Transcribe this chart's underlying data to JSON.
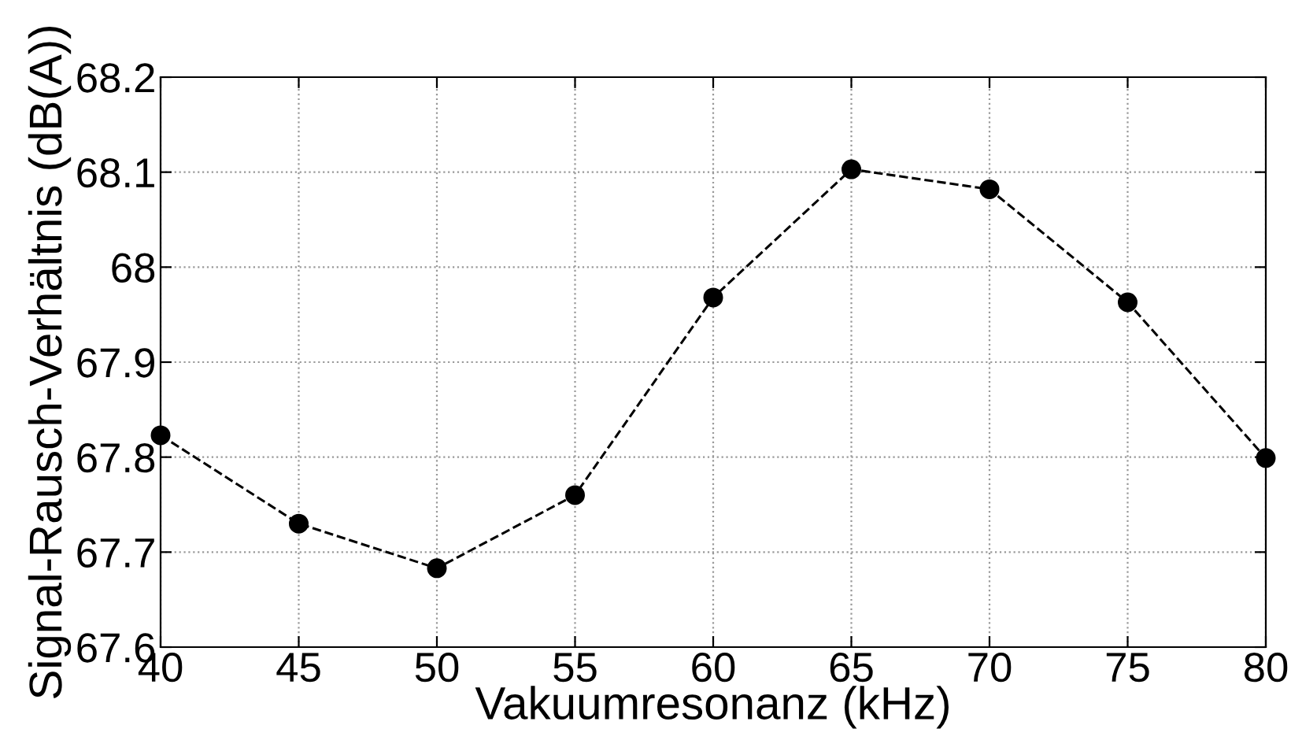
{
  "chart_data": {
    "type": "line",
    "xlabel": "Vakuumresonanz (kHz)",
    "ylabel": "Signal-Rausch-Verhältnis (dB(A))",
    "x": [
      40,
      45,
      50,
      55,
      60,
      65,
      70,
      75,
      80
    ],
    "series": [
      {
        "color": "#000000",
        "values": [
          67.823,
          67.73,
          67.683,
          67.76,
          67.968,
          68.103,
          68.082,
          67.963,
          67.799
        ]
      }
    ],
    "xlim": [
      40,
      80
    ],
    "xticks": [
      40,
      45,
      50,
      55,
      60,
      65,
      70,
      75,
      80
    ],
    "ylim": [
      67.6,
      68.2
    ],
    "yticks": [
      67.6,
      67.7,
      67.8,
      67.9,
      {
        "value": 68.0,
        "label": "68"
      },
      68.1,
      68.2
    ],
    "grid": true,
    "marker": "circle",
    "line_style": "dashed",
    "legend": false
  }
}
